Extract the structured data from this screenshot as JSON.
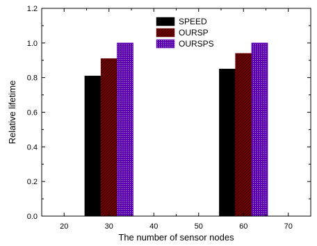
{
  "chart_data": {
    "type": "bar",
    "categories": [
      "30",
      "60"
    ],
    "x": [
      30,
      60
    ],
    "series": [
      {
        "name": "SPEED",
        "values": [
          0.81,
          0.85
        ],
        "color": "#000000",
        "pattern": "solid"
      },
      {
        "name": "OURSP",
        "values": [
          0.91,
          0.94
        ],
        "color": "#7a0000",
        "pattern": "diagonal-hatch"
      },
      {
        "name": "OURSPS",
        "values": [
          1.0,
          1.0
        ],
        "color": "#5a00b0",
        "pattern": "dots"
      }
    ],
    "xlabel": "The number of sensor nodes",
    "ylabel": "Relative lifetime",
    "xlim": [
      15,
      75
    ],
    "ylim": [
      0,
      1.2
    ],
    "xticks": [
      "20",
      "30",
      "40",
      "50",
      "60",
      "70"
    ],
    "yticks": [
      "0.0",
      "0.2",
      "0.4",
      "0.6",
      "0.8",
      "1.0",
      "1.2"
    ],
    "legend_position": "top-center",
    "grid": false
  }
}
